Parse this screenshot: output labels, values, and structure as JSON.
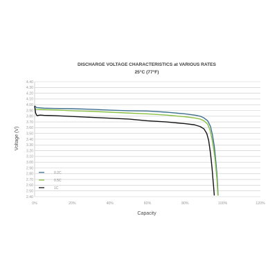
{
  "chart_data": {
    "type": "line",
    "title": "DISCHARGE VOLTAGE CHARACTERISTICS at VARIOUS RATES",
    "subtitle": "25°C (77°F)",
    "xlabel": "Capacity",
    "ylabel": "Voltage (V)",
    "xlim": [
      0,
      120
    ],
    "ylim": [
      2.4,
      4.4
    ],
    "x_ticks": [
      "0%",
      "20%",
      "40%",
      "60%",
      "80%",
      "100%",
      "120%"
    ],
    "x_tick_values": [
      0,
      20,
      40,
      60,
      80,
      100,
      120
    ],
    "y_tick_values": [
      2.4,
      2.5,
      2.6,
      2.7,
      2.8,
      2.9,
      3.0,
      3.1,
      3.2,
      3.3,
      3.4,
      3.5,
      3.6,
      3.7,
      3.8,
      3.9,
      4.0,
      4.1,
      4.2,
      4.3,
      4.4
    ],
    "y_ticks": [
      "2.40",
      "2.50",
      "2.60",
      "2.70",
      "2.80",
      "2.90",
      "3.00",
      "3.10",
      "3.20",
      "3.30",
      "3.40",
      "3.50",
      "3.60",
      "3.70",
      "3.80",
      "3.90",
      "4.00",
      "4.10",
      "4.20",
      "4.30",
      "4.40"
    ],
    "grid": true,
    "legend_position": "bottom-left",
    "series": [
      {
        "name": "0.2C",
        "color": "#3c6e8e",
        "x": [
          0,
          1,
          5,
          10,
          20,
          30,
          40,
          50,
          60,
          70,
          80,
          85,
          88,
          90,
          92,
          93.5,
          94.5,
          95.5,
          96,
          96.5,
          97,
          97.3,
          97.5
        ],
        "y": [
          3.98,
          3.95,
          3.94,
          3.935,
          3.93,
          3.92,
          3.905,
          3.895,
          3.89,
          3.87,
          3.84,
          3.82,
          3.8,
          3.77,
          3.72,
          3.62,
          3.48,
          3.28,
          3.12,
          2.95,
          2.75,
          2.58,
          2.42
        ]
      },
      {
        "name": "0.5C",
        "color": "#8ac045",
        "x": [
          0,
          1,
          5,
          10,
          20,
          30,
          40,
          50,
          60,
          70,
          80,
          85,
          88,
          90,
          92,
          93.3,
          94.3,
          95.3,
          95.9,
          96.4,
          96.9,
          97.2,
          97.4
        ],
        "y": [
          3.93,
          3.92,
          3.915,
          3.91,
          3.895,
          3.885,
          3.87,
          3.855,
          3.84,
          3.82,
          3.79,
          3.77,
          3.75,
          3.72,
          3.66,
          3.55,
          3.4,
          3.2,
          3.05,
          2.88,
          2.7,
          2.55,
          2.42
        ]
      },
      {
        "name": "1C",
        "color": "#111111",
        "x": [
          0,
          0.5,
          1,
          1.5,
          2,
          3,
          5,
          10,
          20,
          30,
          40,
          50,
          60,
          70,
          80,
          85,
          88,
          90,
          91.5,
          92.5,
          93.5,
          94.3,
          94.8,
          95.2,
          95.5
        ],
        "y": [
          3.98,
          3.86,
          3.82,
          3.81,
          3.815,
          3.82,
          3.815,
          3.81,
          3.795,
          3.78,
          3.765,
          3.75,
          3.72,
          3.7,
          3.67,
          3.65,
          3.62,
          3.58,
          3.5,
          3.38,
          3.15,
          2.9,
          2.7,
          2.55,
          2.42
        ]
      }
    ]
  }
}
